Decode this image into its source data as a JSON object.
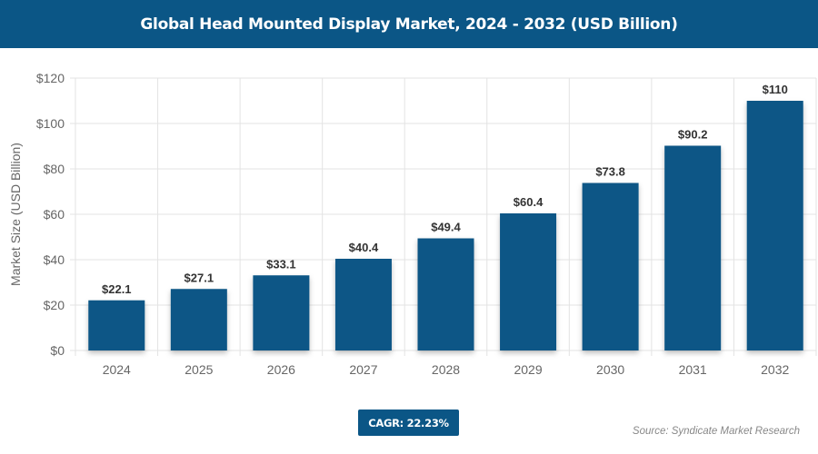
{
  "chart_data": {
    "type": "bar",
    "title": "Global Head Mounted Display Market, 2024 - 2032 (USD Billion)",
    "xlabel": "",
    "ylabel": "Market Size (USD Billion)",
    "categories": [
      "2024",
      "2025",
      "2026",
      "2027",
      "2028",
      "2029",
      "2030",
      "2031",
      "2032"
    ],
    "values": [
      22.1,
      27.1,
      33.1,
      40.4,
      49.4,
      60.4,
      73.8,
      90.2,
      110
    ],
    "data_labels": [
      "$22.1",
      "$27.1",
      "$33.1",
      "$40.4",
      "$49.4",
      "$60.4",
      "$73.8",
      "$90.2",
      "$110"
    ],
    "ylim": [
      0,
      120
    ],
    "yticks": [
      0,
      20,
      40,
      60,
      80,
      100,
      120
    ],
    "ytick_labels": [
      "$0",
      "$20",
      "$40",
      "$60",
      "$80",
      "$100",
      "$120"
    ],
    "grid": true,
    "bar_color": "#0b5686"
  },
  "cagr_label": "CAGR: 22.23%",
  "source": "Source: Syndicate Market Research"
}
